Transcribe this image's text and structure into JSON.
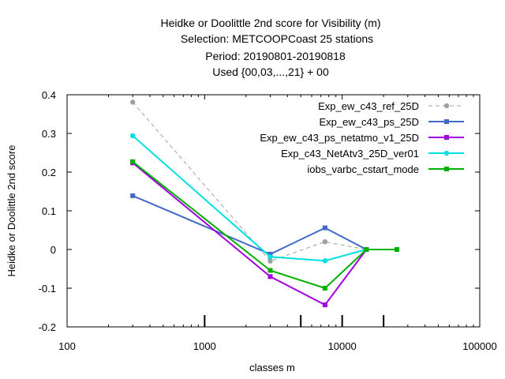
{
  "chart_data": {
    "type": "line",
    "title_lines": [
      "Heidke or Doolittle 2nd score  for Visibility (m)",
      "Selection: METCOOPCoast     25 stations",
      "Period: 20190801-20190818",
      "Used {00,03,...,21} + 00"
    ],
    "xlabel": "classes m",
    "ylabel": "Heidke or Doolittle 2nd score",
    "x_scale": "log",
    "xlim": [
      100,
      100000
    ],
    "ylim": [
      -0.2,
      0.4
    ],
    "x_ticks": [
      100,
      1000,
      10000,
      100000
    ],
    "x_tick_labels": [
      "100",
      "1000",
      "10000",
      "100000"
    ],
    "y_ticks": [
      -0.2,
      -0.1,
      0,
      0.1,
      0.2,
      0.3,
      0.4
    ],
    "y_tick_labels": [
      "-0.2",
      "-0.1",
      "0",
      "0.1",
      "0.2",
      "0.3",
      "0.4"
    ],
    "class_boundaries": [
      1000,
      5000,
      10000,
      20000
    ],
    "grid": false,
    "legend_position": "top-right",
    "series": [
      {
        "name": "Exp_ew_c43_ref_25D",
        "color": "#a0a0a0",
        "dashed": true,
        "marker": "circle",
        "x": [
          300,
          3000,
          7500,
          15000
        ],
        "y": [
          0.381,
          -0.03,
          0.02,
          0.0
        ]
      },
      {
        "name": "Exp_ew_c43_ps_25D",
        "color": "#4169c8",
        "dashed": false,
        "marker": "square",
        "x": [
          300,
          3000,
          7500,
          15000
        ],
        "y": [
          0.139,
          -0.012,
          0.056,
          0.0
        ]
      },
      {
        "name": "Exp_ew_c43_ps_netatmo_v1_25D",
        "color": "#a000e0",
        "dashed": false,
        "marker": "square",
        "x": [
          300,
          3000,
          7500,
          15000
        ],
        "y": [
          0.224,
          -0.07,
          -0.143,
          0.0
        ]
      },
      {
        "name": "Exp_c43_NetAtv3_25D_ver01",
        "color": "#00e0e0",
        "dashed": false,
        "marker": "circle",
        "x": [
          300,
          3000,
          7500,
          15000
        ],
        "y": [
          0.294,
          -0.019,
          -0.029,
          0.0
        ]
      },
      {
        "name": "iobs_varbc_cstart_mode",
        "color": "#00b000",
        "dashed": false,
        "marker": "square",
        "x": [
          300,
          3000,
          7500,
          15000,
          25000
        ],
        "y": [
          0.227,
          -0.054,
          -0.1,
          0.0,
          0.0
        ]
      }
    ]
  }
}
